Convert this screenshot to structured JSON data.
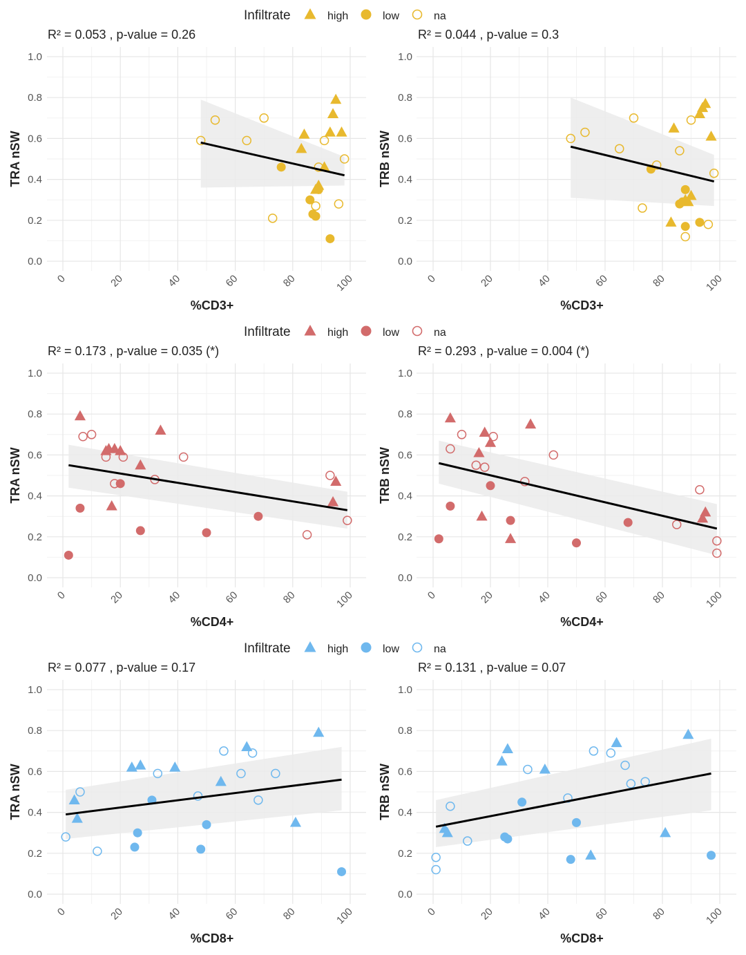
{
  "legend": {
    "title": "Infiltrate",
    "high": "high",
    "low": "low",
    "na": "na"
  },
  "colors": {
    "yellow": "#E8B92E",
    "red": "#D26B6B",
    "blue": "#6FB8EE",
    "band": "#EBEBEB",
    "grid": "#E6E6E6",
    "line": "#000000",
    "text": "#222222",
    "axisText": "#555555"
  },
  "rows": [
    {
      "color_key": "yellow",
      "legend": {
        "title": "Infiltrate",
        "high": "high",
        "low": "low",
        "na": "na"
      }
    },
    {
      "color_key": "red",
      "legend": {
        "title": "Infiltrate",
        "high": "high",
        "low": "low",
        "na": "na"
      }
    },
    {
      "color_key": "blue",
      "legend": {
        "title": "Infiltrate",
        "high": "high",
        "low": "low",
        "na": "na"
      }
    }
  ],
  "chart_data": [
    {
      "type": "scatter",
      "annotation": "R² = 0.053 , p-value = 0.26",
      "xlabel": "%CD3+",
      "ylabel": "TRA nSW",
      "xlim": [
        0,
        100
      ],
      "ylim": [
        0,
        1
      ],
      "xticks": [
        "0",
        "20",
        "40",
        "60",
        "80",
        "100"
      ],
      "yticks": [
        "0.0",
        "0.2",
        "0.4",
        "0.6",
        "0.8",
        "1.0"
      ],
      "grid": true,
      "fit": {
        "x": [
          48,
          98
        ],
        "y": [
          0.58,
          0.42
        ],
        "band_lo": [
          0.36,
          0.37
        ],
        "band_hi": [
          0.79,
          0.51
        ]
      },
      "points": {
        "high": [
          [
            84,
            0.62
          ],
          [
            95,
            0.79
          ],
          [
            94,
            0.72
          ],
          [
            97,
            0.63
          ],
          [
            93,
            0.63
          ],
          [
            83,
            0.55
          ],
          [
            91,
            0.46
          ],
          [
            89,
            0.37
          ],
          [
            88,
            0.35
          ]
        ],
        "low": [
          [
            76,
            0.46
          ],
          [
            86,
            0.3
          ],
          [
            89,
            0.35
          ],
          [
            87,
            0.23
          ],
          [
            88,
            0.22
          ],
          [
            93,
            0.11
          ]
        ],
        "na": [
          [
            48,
            0.59
          ],
          [
            53,
            0.69
          ],
          [
            64,
            0.59
          ],
          [
            70,
            0.7
          ],
          [
            88,
            0.27
          ],
          [
            89,
            0.46
          ],
          [
            91,
            0.59
          ],
          [
            98,
            0.5
          ],
          [
            96,
            0.28
          ],
          [
            73,
            0.21
          ]
        ]
      }
    },
    {
      "type": "scatter",
      "annotation": "R² = 0.044 , p-value = 0.3",
      "xlabel": "%CD3+",
      "ylabel": "TRB nSW",
      "xlim": [
        0,
        100
      ],
      "ylim": [
        0,
        1
      ],
      "xticks": [
        "0",
        "20",
        "40",
        "60",
        "80",
        "100"
      ],
      "yticks": [
        "0.0",
        "0.2",
        "0.4",
        "0.6",
        "0.8",
        "1.0"
      ],
      "grid": true,
      "fit": {
        "x": [
          48,
          98
        ],
        "y": [
          0.56,
          0.39
        ],
        "band_lo": [
          0.31,
          0.27
        ],
        "band_hi": [
          0.8,
          0.52
        ]
      },
      "points": {
        "high": [
          [
            84,
            0.65
          ],
          [
            95,
            0.77
          ],
          [
            94,
            0.75
          ],
          [
            93,
            0.72
          ],
          [
            97,
            0.61
          ],
          [
            90,
            0.32
          ],
          [
            88,
            0.3
          ],
          [
            89,
            0.29
          ],
          [
            83,
            0.19
          ]
        ],
        "low": [
          [
            76,
            0.45
          ],
          [
            88,
            0.35
          ],
          [
            86,
            0.28
          ],
          [
            87,
            0.29
          ],
          [
            88,
            0.17
          ],
          [
            93,
            0.19
          ]
        ],
        "na": [
          [
            48,
            0.6
          ],
          [
            53,
            0.63
          ],
          [
            65,
            0.55
          ],
          [
            70,
            0.7
          ],
          [
            78,
            0.47
          ],
          [
            86,
            0.54
          ],
          [
            90,
            0.69
          ],
          [
            98,
            0.43
          ],
          [
            73,
            0.26
          ],
          [
            96,
            0.18
          ],
          [
            88,
            0.12
          ]
        ]
      }
    },
    {
      "type": "scatter",
      "annotation": "R² = 0.173 , p-value = 0.035 (*)",
      "xlabel": "%CD4+",
      "ylabel": "TRA nSW",
      "xlim": [
        0,
        100
      ],
      "ylim": [
        0,
        1
      ],
      "xticks": [
        "0",
        "20",
        "40",
        "60",
        "80",
        "100"
      ],
      "yticks": [
        "0.0",
        "0.2",
        "0.4",
        "0.6",
        "0.8",
        "1.0"
      ],
      "grid": true,
      "fit": {
        "x": [
          2,
          99
        ],
        "y": [
          0.55,
          0.33
        ],
        "band_lo": [
          0.44,
          0.24
        ],
        "band_hi": [
          0.65,
          0.42
        ]
      },
      "points": {
        "high": [
          [
            6,
            0.79
          ],
          [
            16,
            0.63
          ],
          [
            18,
            0.63
          ],
          [
            20,
            0.62
          ],
          [
            15,
            0.62
          ],
          [
            34,
            0.72
          ],
          [
            27,
            0.55
          ],
          [
            95,
            0.47
          ],
          [
            94,
            0.37
          ],
          [
            17,
            0.35
          ]
        ],
        "low": [
          [
            2,
            0.11
          ],
          [
            6,
            0.34
          ],
          [
            20,
            0.46
          ],
          [
            27,
            0.23
          ],
          [
            50,
            0.22
          ],
          [
            68,
            0.3
          ]
        ],
        "na": [
          [
            7,
            0.69
          ],
          [
            10,
            0.7
          ],
          [
            15,
            0.59
          ],
          [
            21,
            0.59
          ],
          [
            18,
            0.46
          ],
          [
            32,
            0.48
          ],
          [
            42,
            0.59
          ],
          [
            93,
            0.5
          ],
          [
            85,
            0.21
          ],
          [
            99,
            0.28
          ]
        ]
      }
    },
    {
      "type": "scatter",
      "annotation": "R² = 0.293 , p-value = 0.004 (*)",
      "xlabel": "%CD4+",
      "ylabel": "TRB nSW",
      "xlim": [
        0,
        100
      ],
      "ylim": [
        0,
        1
      ],
      "xticks": [
        "0",
        "20",
        "40",
        "60",
        "80",
        "100"
      ],
      "yticks": [
        "0.0",
        "0.2",
        "0.4",
        "0.6",
        "0.8",
        "1.0"
      ],
      "grid": true,
      "fit": {
        "x": [
          2,
          99
        ],
        "y": [
          0.56,
          0.24
        ],
        "band_lo": [
          0.46,
          0.11
        ],
        "band_hi": [
          0.67,
          0.36
        ]
      },
      "points": {
        "high": [
          [
            6,
            0.78
          ],
          [
            18,
            0.71
          ],
          [
            34,
            0.75
          ],
          [
            20,
            0.66
          ],
          [
            16,
            0.61
          ],
          [
            17,
            0.3
          ],
          [
            27,
            0.19
          ],
          [
            95,
            0.32
          ],
          [
            94,
            0.29
          ]
        ],
        "low": [
          [
            2,
            0.19
          ],
          [
            6,
            0.35
          ],
          [
            20,
            0.45
          ],
          [
            27,
            0.28
          ],
          [
            50,
            0.17
          ],
          [
            68,
            0.27
          ]
        ],
        "na": [
          [
            6,
            0.63
          ],
          [
            10,
            0.7
          ],
          [
            21,
            0.69
          ],
          [
            15,
            0.55
          ],
          [
            18,
            0.54
          ],
          [
            32,
            0.47
          ],
          [
            42,
            0.6
          ],
          [
            93,
            0.43
          ],
          [
            85,
            0.26
          ],
          [
            99,
            0.18
          ],
          [
            99,
            0.12
          ]
        ]
      }
    },
    {
      "type": "scatter",
      "annotation": "R² = 0.077 , p-value = 0.17",
      "xlabel": "%CD8+",
      "ylabel": "TRA nSW",
      "xlim": [
        0,
        100
      ],
      "ylim": [
        0,
        1
      ],
      "xticks": [
        "0",
        "20",
        "40",
        "60",
        "80",
        "100"
      ],
      "yticks": [
        "0.0",
        "0.2",
        "0.4",
        "0.6",
        "0.8",
        "1.0"
      ],
      "grid": true,
      "fit": {
        "x": [
          1,
          97
        ],
        "y": [
          0.39,
          0.56
        ],
        "band_lo": [
          0.27,
          0.41
        ],
        "band_hi": [
          0.51,
          0.72
        ]
      },
      "points": {
        "high": [
          [
            89,
            0.79
          ],
          [
            64,
            0.72
          ],
          [
            24,
            0.62
          ],
          [
            27,
            0.63
          ],
          [
            39,
            0.62
          ],
          [
            55,
            0.55
          ],
          [
            4,
            0.46
          ],
          [
            5,
            0.37
          ],
          [
            81,
            0.35
          ]
        ],
        "low": [
          [
            31,
            0.46
          ],
          [
            26,
            0.3
          ],
          [
            25,
            0.23
          ],
          [
            48,
            0.22
          ],
          [
            50,
            0.34
          ],
          [
            97,
            0.11
          ]
        ],
        "na": [
          [
            56,
            0.7
          ],
          [
            66,
            0.69
          ],
          [
            62,
            0.59
          ],
          [
            74,
            0.59
          ],
          [
            33,
            0.59
          ],
          [
            6,
            0.5
          ],
          [
            47,
            0.48
          ],
          [
            68,
            0.46
          ],
          [
            1,
            0.28
          ],
          [
            12,
            0.21
          ]
        ]
      }
    },
    {
      "type": "scatter",
      "annotation": "R² = 0.131 , p-value = 0.07",
      "xlabel": "%CD8+",
      "ylabel": "TRB nSW",
      "xlim": [
        0,
        100
      ],
      "ylim": [
        0,
        1
      ],
      "xticks": [
        "0",
        "20",
        "40",
        "60",
        "80",
        "100"
      ],
      "yticks": [
        "0.0",
        "0.2",
        "0.4",
        "0.6",
        "0.8",
        "1.0"
      ],
      "grid": true,
      "fit": {
        "x": [
          1,
          97
        ],
        "y": [
          0.33,
          0.59
        ],
        "band_lo": [
          0.23,
          0.41
        ],
        "band_hi": [
          0.46,
          0.76
        ]
      },
      "points": {
        "high": [
          [
            89,
            0.78
          ],
          [
            64,
            0.74
          ],
          [
            26,
            0.71
          ],
          [
            24,
            0.65
          ],
          [
            39,
            0.61
          ],
          [
            4,
            0.32
          ],
          [
            5,
            0.3
          ],
          [
            81,
            0.3
          ],
          [
            55,
            0.19
          ]
        ],
        "low": [
          [
            31,
            0.45
          ],
          [
            25,
            0.28
          ],
          [
            26,
            0.27
          ],
          [
            50,
            0.35
          ],
          [
            48,
            0.17
          ],
          [
            97,
            0.19
          ]
        ],
        "na": [
          [
            56,
            0.7
          ],
          [
            62,
            0.69
          ],
          [
            67,
            0.63
          ],
          [
            33,
            0.61
          ],
          [
            69,
            0.54
          ],
          [
            74,
            0.55
          ],
          [
            47,
            0.47
          ],
          [
            6,
            0.43
          ],
          [
            12,
            0.26
          ],
          [
            1,
            0.18
          ],
          [
            1,
            0.12
          ]
        ]
      }
    }
  ]
}
